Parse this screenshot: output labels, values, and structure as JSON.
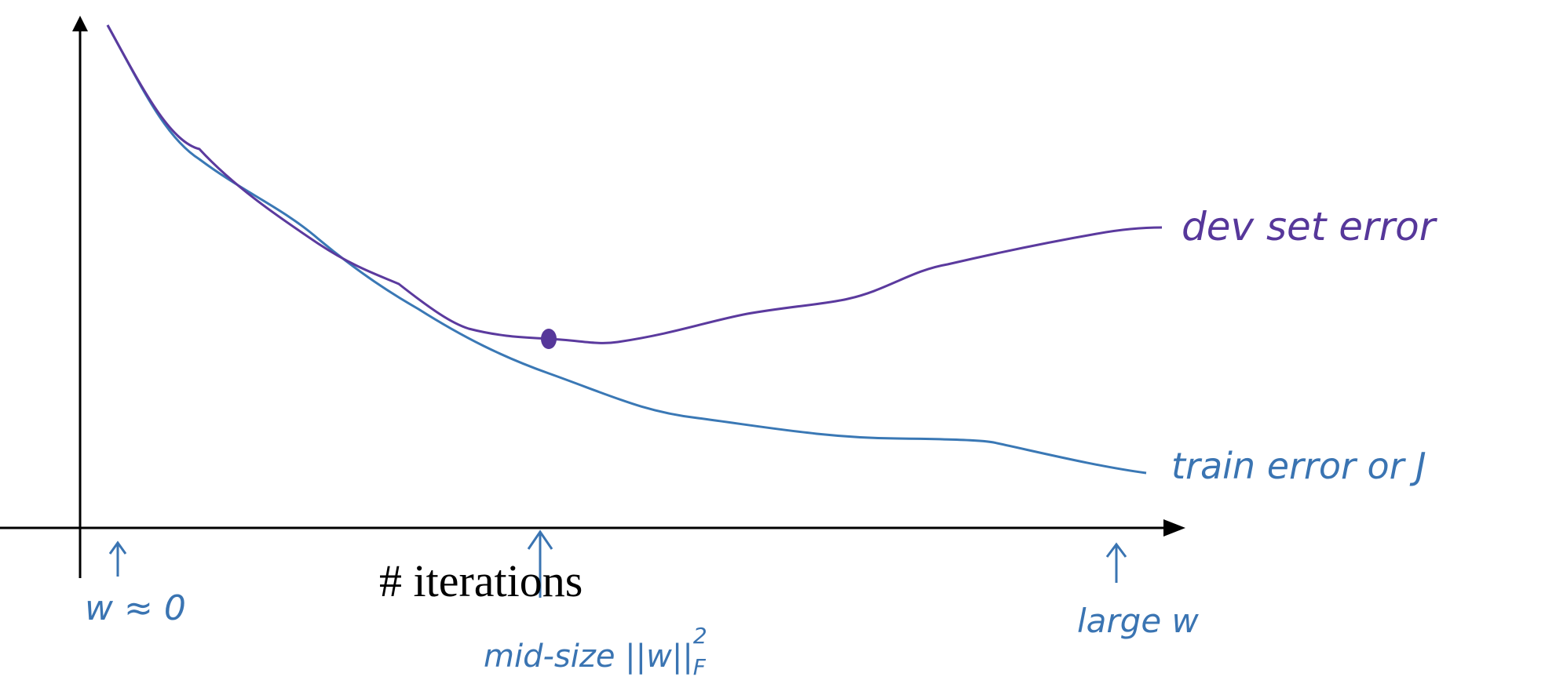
{
  "labels": {
    "dev_curve": "dev set error",
    "train_curve": "train error or J",
    "x_axis": "# iterations",
    "small_w": "w ≈ 0",
    "mid_w": {
      "text": "mid-size ||w||",
      "sub": "F",
      "sup": "2"
    },
    "large_w": "large w"
  }
}
